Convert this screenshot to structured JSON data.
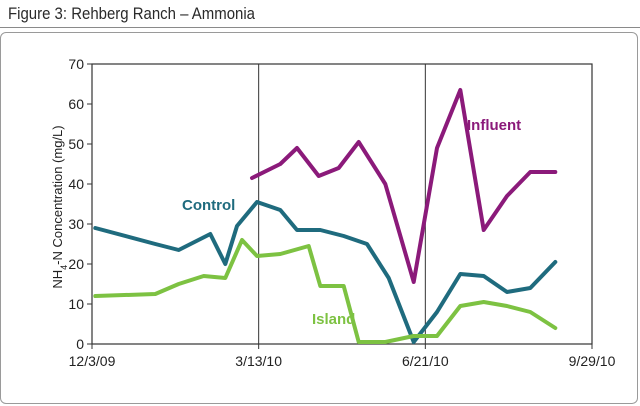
{
  "figure": {
    "title": "Figure 3: Rehberg Ranch – Ammonia"
  },
  "chart_data": {
    "type": "line",
    "title": "Figure 3: Rehberg Ranch – Ammonia",
    "ylabel": "NH4-N Concentration (mg/L)",
    "ylabel_main": "NH",
    "ylabel_sub": "4",
    "ylabel_rest": "-N Concentration (mg/L)",
    "xlabel": "",
    "ylim": [
      0,
      70
    ],
    "yticks": [
      "0",
      "10",
      "20",
      "30",
      "40",
      "50",
      "60",
      "70"
    ],
    "yticks_values": [
      0,
      10,
      20,
      30,
      40,
      50,
      60,
      70
    ],
    "xticks": [
      "12/3/09",
      "3/13/10",
      "6/21/10",
      "9/29/10"
    ],
    "xticks_values": [
      "2009-12-03",
      "2010-03-13",
      "2010-06-21",
      "2010-09-29"
    ],
    "xlim": [
      "2009-12-03",
      "2010-09-29"
    ],
    "grid": "x-major",
    "series": [
      {
        "name": "Influent",
        "color": "#8B1A7A",
        "points": [
          [
            "2010-03-09",
            41.5
          ],
          [
            "2010-03-26",
            45
          ],
          [
            "2010-04-05",
            49
          ],
          [
            "2010-04-18",
            42
          ],
          [
            "2010-04-30",
            44
          ],
          [
            "2010-05-12",
            50.5
          ],
          [
            "2010-05-28",
            40
          ],
          [
            "2010-06-14",
            15.5
          ],
          [
            "2010-06-28",
            49
          ],
          [
            "2010-07-12",
            63.5
          ],
          [
            "2010-07-26",
            28.5
          ],
          [
            "2010-08-09",
            37
          ],
          [
            "2010-08-23",
            43
          ],
          [
            "2010-09-07",
            43
          ]
        ]
      },
      {
        "name": "Control",
        "color": "#1F6B7E",
        "points": [
          [
            "2009-12-05",
            29
          ],
          [
            "2010-01-10",
            25
          ],
          [
            "2010-01-24",
            23.5
          ],
          [
            "2010-02-12",
            27.5
          ],
          [
            "2010-02-21",
            20
          ],
          [
            "2010-02-28",
            29.5
          ],
          [
            "2010-03-12",
            35.5
          ],
          [
            "2010-03-26",
            33.5
          ],
          [
            "2010-04-05",
            28.5
          ],
          [
            "2010-04-19",
            28.5
          ],
          [
            "2010-05-03",
            27
          ],
          [
            "2010-05-17",
            25
          ],
          [
            "2010-05-30",
            16.5
          ],
          [
            "2010-06-14",
            0.5
          ],
          [
            "2010-06-28",
            8
          ],
          [
            "2010-07-12",
            17.5
          ],
          [
            "2010-07-26",
            17
          ],
          [
            "2010-08-09",
            13
          ],
          [
            "2010-08-23",
            14
          ],
          [
            "2010-09-07",
            20.5
          ]
        ]
      },
      {
        "name": "Island",
        "color": "#7DC242",
        "points": [
          [
            "2009-12-05",
            12
          ],
          [
            "2010-01-10",
            12.5
          ],
          [
            "2010-01-24",
            15
          ],
          [
            "2010-02-08",
            17
          ],
          [
            "2010-02-21",
            16.5
          ],
          [
            "2010-03-03",
            26
          ],
          [
            "2010-03-12",
            22
          ],
          [
            "2010-03-26",
            22.5
          ],
          [
            "2010-04-12",
            24.5
          ],
          [
            "2010-04-19",
            14.5
          ],
          [
            "2010-05-03",
            14.5
          ],
          [
            "2010-05-12",
            0.5
          ],
          [
            "2010-05-28",
            0.5
          ],
          [
            "2010-06-14",
            2
          ],
          [
            "2010-06-28",
            2
          ],
          [
            "2010-07-12",
            9.5
          ],
          [
            "2010-07-26",
            10.5
          ],
          [
            "2010-08-09",
            9.5
          ],
          [
            "2010-08-23",
            8
          ],
          [
            "2010-09-07",
            4
          ]
        ]
      }
    ],
    "annotations": [
      {
        "series": "Influent",
        "text": "Influent"
      },
      {
        "series": "Control",
        "text": "Control"
      },
      {
        "series": "Island",
        "text": "Island"
      }
    ]
  }
}
